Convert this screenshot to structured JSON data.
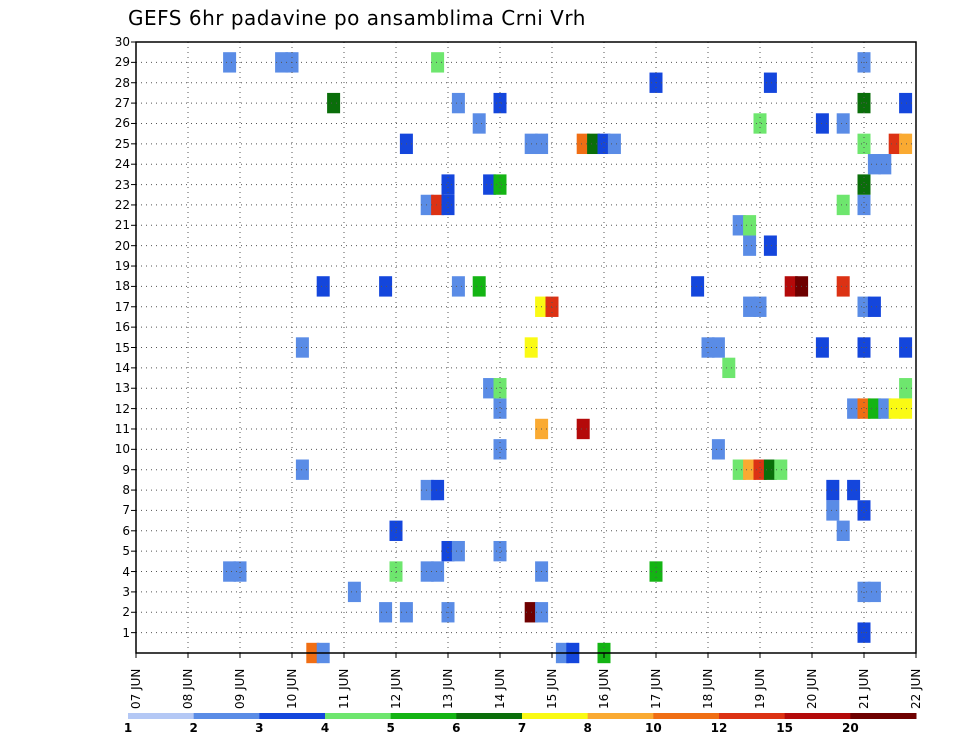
{
  "chart_data": {
    "type": "heatmap",
    "title": "GEFS 6hr padavine po ansamblima Crni Vrh",
    "xlabel": "",
    "ylabel": "",
    "x_ticks": [
      "07 JUN",
      "08 JUN",
      "09 JUN",
      "10 JUN",
      "11 JUN",
      "12 JUN",
      "13 JUN",
      "14 JUN",
      "15 JUN",
      "16 JUN",
      "17 JUN",
      "18 JUN",
      "19 JUN",
      "20 JUN",
      "21 JUN",
      "22 JUN"
    ],
    "y_ticks": [
      1,
      2,
      3,
      4,
      5,
      6,
      7,
      8,
      9,
      10,
      11,
      12,
      13,
      14,
      15,
      16,
      17,
      18,
      19,
      20,
      21,
      22,
      23,
      24,
      25,
      26,
      27,
      28,
      29,
      30
    ],
    "x_range_days": [
      0,
      15
    ],
    "y_range": [
      0,
      30
    ],
    "grid": true,
    "colorbar": {
      "levels": [
        "1",
        "2",
        "3",
        "4",
        "5",
        "6",
        "7",
        "8",
        "10",
        "12",
        "15",
        "20"
      ],
      "colors": [
        "#b4c8f5",
        "#5a8ce6",
        "#1446dc",
        "#6ee66e",
        "#14b414",
        "#0a6e0a",
        "#fafa14",
        "#faaa32",
        "#f06e14",
        "#dc3214",
        "#b40a0a",
        "#6e0000"
      ]
    },
    "cells": [
      [
        9.0,
        0,
        4
      ],
      [
        8.2,
        0,
        1
      ],
      [
        8.4,
        0,
        2
      ],
      [
        3.4,
        0,
        8
      ],
      [
        3.6,
        0,
        1
      ],
      [
        14.0,
        1,
        2
      ],
      [
        4.8,
        2,
        1
      ],
      [
        5.2,
        2,
        1
      ],
      [
        6.0,
        2,
        1
      ],
      [
        7.6,
        2,
        11
      ],
      [
        7.8,
        2,
        1
      ],
      [
        4.2,
        3,
        1
      ],
      [
        14.0,
        3,
        1
      ],
      [
        14.2,
        3,
        1
      ],
      [
        1.8,
        4,
        1
      ],
      [
        2.0,
        4,
        1
      ],
      [
        5.0,
        4,
        3
      ],
      [
        5.6,
        4,
        1
      ],
      [
        5.8,
        4,
        1
      ],
      [
        7.8,
        4,
        1
      ],
      [
        10.0,
        4,
        4
      ],
      [
        6.0,
        5,
        2
      ],
      [
        6.2,
        5,
        1
      ],
      [
        7.0,
        5,
        1
      ],
      [
        5.0,
        6,
        2
      ],
      [
        13.6,
        6,
        1
      ],
      [
        13.4,
        7,
        1
      ],
      [
        14.0,
        7,
        2
      ],
      [
        5.6,
        8,
        1
      ],
      [
        5.8,
        8,
        2
      ],
      [
        13.4,
        8,
        2
      ],
      [
        13.8,
        8,
        2
      ],
      [
        3.2,
        9,
        1
      ],
      [
        11.6,
        9,
        3
      ],
      [
        11.8,
        9,
        7
      ],
      [
        12.0,
        9,
        9
      ],
      [
        12.2,
        9,
        5
      ],
      [
        12.4,
        9,
        3
      ],
      [
        7.0,
        10,
        1
      ],
      [
        11.2,
        10,
        1
      ],
      [
        7.8,
        11,
        7
      ],
      [
        8.6,
        11,
        10
      ],
      [
        7.0,
        12,
        1
      ],
      [
        13.8,
        12,
        1
      ],
      [
        14.0,
        12,
        8
      ],
      [
        14.2,
        12,
        4
      ],
      [
        14.4,
        12,
        1
      ],
      [
        14.6,
        12,
        6
      ],
      [
        14.8,
        12,
        6
      ],
      [
        6.8,
        13,
        1
      ],
      [
        7.0,
        13,
        3
      ],
      [
        14.8,
        13,
        3
      ],
      [
        11.4,
        14,
        3
      ],
      [
        3.2,
        15,
        1
      ],
      [
        7.6,
        15,
        6
      ],
      [
        11.0,
        15,
        1
      ],
      [
        11.2,
        15,
        1
      ],
      [
        13.2,
        15,
        2
      ],
      [
        14.0,
        15,
        2
      ],
      [
        14.8,
        15,
        2
      ],
      [
        7.8,
        17,
        6
      ],
      [
        8.0,
        17,
        9
      ],
      [
        11.8,
        17,
        1
      ],
      [
        12.0,
        17,
        1
      ],
      [
        14.0,
        17,
        1
      ],
      [
        14.2,
        17,
        2
      ],
      [
        3.6,
        18,
        2
      ],
      [
        4.8,
        18,
        2
      ],
      [
        6.2,
        18,
        1
      ],
      [
        6.6,
        18,
        4
      ],
      [
        10.8,
        18,
        2
      ],
      [
        12.6,
        18,
        10
      ],
      [
        12.8,
        18,
        11
      ],
      [
        13.6,
        18,
        9
      ],
      [
        11.8,
        20,
        1
      ],
      [
        12.2,
        20,
        2
      ],
      [
        11.6,
        21,
        1
      ],
      [
        11.8,
        21,
        3
      ],
      [
        5.6,
        22,
        1
      ],
      [
        5.8,
        22,
        9
      ],
      [
        6.0,
        22,
        2
      ],
      [
        13.6,
        22,
        3
      ],
      [
        14.0,
        22,
        1
      ],
      [
        6.0,
        23,
        2
      ],
      [
        6.8,
        23,
        2
      ],
      [
        7.0,
        23,
        4
      ],
      [
        14.0,
        23,
        5
      ],
      [
        14.2,
        24,
        1
      ],
      [
        14.4,
        24,
        1
      ],
      [
        5.2,
        25,
        2
      ],
      [
        7.6,
        25,
        1
      ],
      [
        7.8,
        25,
        1
      ],
      [
        8.6,
        25,
        8
      ],
      [
        8.8,
        25,
        5
      ],
      [
        9.0,
        25,
        2
      ],
      [
        9.2,
        25,
        1
      ],
      [
        14.0,
        25,
        3
      ],
      [
        14.6,
        25,
        9
      ],
      [
        14.8,
        25,
        7
      ],
      [
        6.6,
        26,
        1
      ],
      [
        12.0,
        26,
        3
      ],
      [
        13.2,
        26,
        2
      ],
      [
        13.6,
        26,
        1
      ],
      [
        3.8,
        27,
        5
      ],
      [
        6.2,
        27,
        1
      ],
      [
        7.0,
        27,
        2
      ],
      [
        14.0,
        27,
        5
      ],
      [
        14.8,
        27,
        2
      ],
      [
        10.0,
        28,
        2
      ],
      [
        12.2,
        28,
        2
      ],
      [
        1.8,
        29,
        1
      ],
      [
        2.8,
        29,
        1
      ],
      [
        3.0,
        29,
        1
      ],
      [
        5.8,
        29,
        3
      ],
      [
        14.0,
        29,
        1
      ]
    ]
  }
}
